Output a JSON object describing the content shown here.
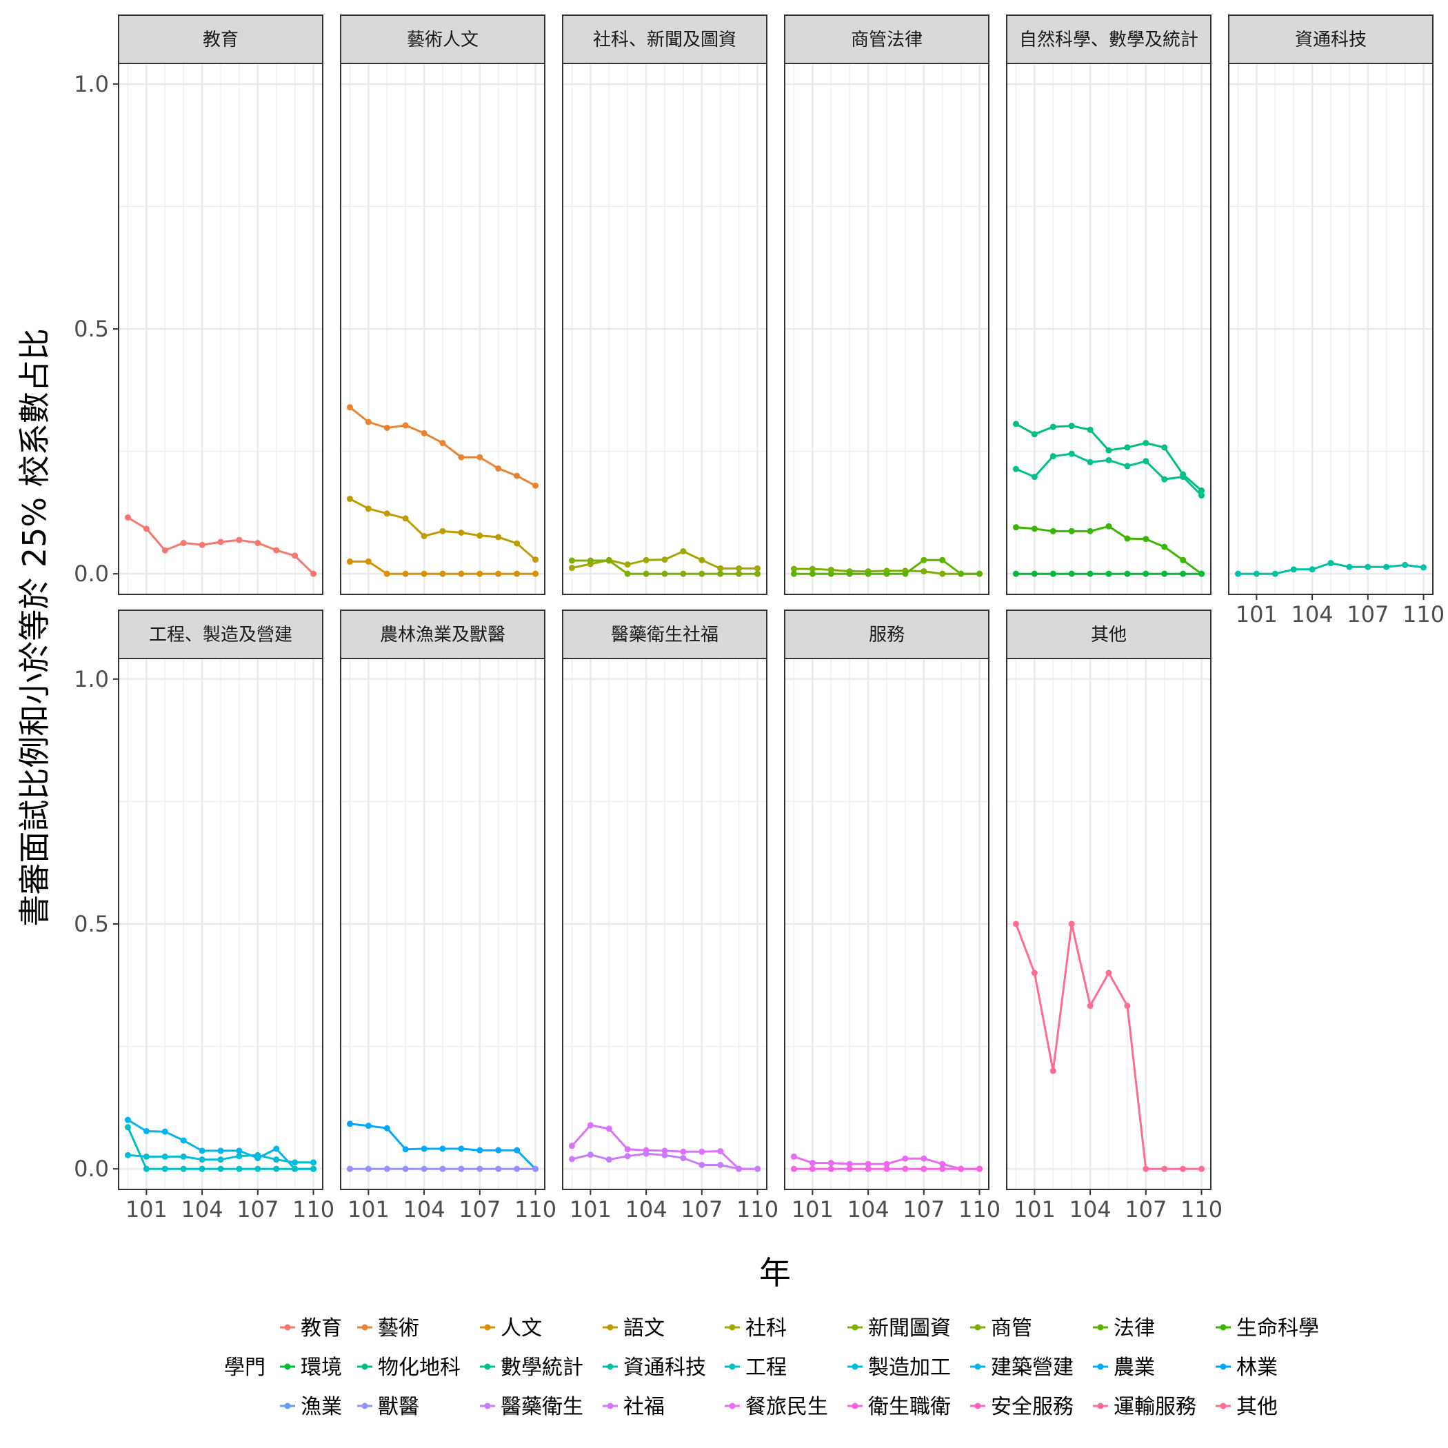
{
  "chart_data": {
    "type": "line",
    "xlabel": "年",
    "ylabel": "書審面試比例和小於等於 25% 校系數占比",
    "ylim": [
      0,
      1
    ],
    "xlim": [
      100,
      110
    ],
    "y_ticks": [
      {
        "value": 0,
        "label": "0.0"
      },
      {
        "value": 0.5,
        "label": "0.5"
      },
      {
        "value": 1,
        "label": "1.0"
      }
    ],
    "x_ticks": [
      {
        "value": 101,
        "label": "101"
      },
      {
        "value": 104,
        "label": "104"
      },
      {
        "value": 107,
        "label": "107"
      },
      {
        "value": 110,
        "label": "110"
      }
    ],
    "grid": true,
    "legend": {
      "title": "學門",
      "position": "bottom"
    },
    "colors": {
      "教育": "#F8766D",
      "藝術": "#EA8331",
      "人文": "#D89000",
      "語文": "#C09B00",
      "社科": "#A3A500",
      "新聞圖資": "#7CAE00",
      "商管": "#7CAE00",
      "法律": "#5BB300",
      "生命科學": "#39B600",
      "環境": "#00BA38",
      "物化地科": "#00BF7D",
      "數學統計": "#00C08B",
      "資通科技": "#00C1A3",
      "工程": "#00BFC4",
      "製造加工": "#00BBDA",
      "建築營建": "#00B4F0",
      "農業": "#00A9FF",
      "林業": "#00A5FF",
      "漁業": "#619CFF",
      "獸醫": "#9590FF",
      "醫藥衛生": "#C77CFF",
      "社福": "#DB72FB",
      "餐旅民生": "#E76BF3",
      "衛生職衛": "#F564E3",
      "安全服務": "#FF62BC",
      "運輸服務": "#FF6A98",
      "其他": "#FF6C91"
    },
    "legend_items": [
      "教育",
      "藝術",
      "人文",
      "語文",
      "社科",
      "新聞圖資",
      "商管",
      "法律",
      "生命科學",
      "環境",
      "物化地科",
      "數學統計",
      "資通科技",
      "工程",
      "製造加工",
      "建築營建",
      "農業",
      "林業",
      "漁業",
      "獸醫",
      "醫藥衛生",
      "社福",
      "餐旅民生",
      "衛生職衛",
      "安全服務",
      "運輸服務",
      "其他"
    ],
    "panels": [
      {
        "title": "教育",
        "x": [
          100,
          101,
          102,
          103,
          104,
          105,
          106,
          107,
          108,
          109,
          110
        ],
        "series": [
          {
            "name": "教育",
            "values": [
              0.115,
              0.092,
              0.048,
              0.063,
              0.059,
              0.065,
              0.069,
              0.063,
              0.048,
              0.037,
              0.0
            ]
          }
        ]
      },
      {
        "title": "藝術人文",
        "x": [
          100,
          101,
          102,
          103,
          104,
          105,
          106,
          107,
          108,
          109,
          110
        ],
        "series": [
          {
            "name": "藝術",
            "values": [
              0.34,
              0.31,
              0.298,
              0.303,
              0.287,
              0.267,
              0.238,
              0.238,
              0.215,
              0.2,
              0.18
            ]
          },
          {
            "name": "語文",
            "values": [
              0.153,
              0.133,
              0.123,
              0.113,
              0.077,
              0.087,
              0.084,
              0.078,
              0.075,
              0.062,
              0.029
            ]
          },
          {
            "name": "人文",
            "values": [
              0.025,
              0.025,
              0.0,
              0.0,
              0.0,
              0.0,
              0.0,
              0.0,
              0.0,
              0.0,
              0.0
            ]
          }
        ]
      },
      {
        "title": "社科、新聞及圖資",
        "x": [
          100,
          101,
          102,
          103,
          104,
          105,
          106,
          107,
          108,
          109,
          110
        ],
        "series": [
          {
            "name": "社科",
            "values": [
              0.012,
              0.02,
              0.028,
              0.019,
              0.028,
              0.029,
              0.046,
              0.028,
              0.011,
              0.011,
              0.011
            ]
          },
          {
            "name": "新聞圖資",
            "values": [
              0.027,
              0.027,
              0.027,
              0.0,
              0.0,
              0.0,
              0.0,
              0.0,
              0.0,
              0.0,
              0.0
            ]
          }
        ]
      },
      {
        "title": "商管法律",
        "x": [
          100,
          101,
          102,
          103,
          104,
          105,
          106,
          107,
          108,
          109,
          110
        ],
        "series": [
          {
            "name": "商管",
            "values": [
              0.01,
              0.01,
              0.008,
              0.005,
              0.005,
              0.006,
              0.006,
              0.005,
              0.0,
              0.0,
              0.0
            ]
          },
          {
            "name": "法律",
            "values": [
              0.0,
              0.0,
              0.0,
              0.0,
              0.0,
              0.0,
              0.0,
              0.028,
              0.028,
              0.0,
              0.0
            ]
          }
        ]
      },
      {
        "title": "自然科學、數學及統計",
        "x": [
          100,
          101,
          102,
          103,
          104,
          105,
          106,
          107,
          108,
          109,
          110
        ],
        "series": [
          {
            "name": "物化地科",
            "values": [
              0.306,
              0.285,
              0.3,
              0.302,
              0.294,
              0.252,
              0.258,
              0.267,
              0.258,
              0.203,
              0.17
            ]
          },
          {
            "name": "數學統計",
            "values": [
              0.214,
              0.198,
              0.24,
              0.245,
              0.228,
              0.232,
              0.22,
              0.23,
              0.193,
              0.198,
              0.16
            ]
          },
          {
            "name": "生命科學",
            "values": [
              0.095,
              0.092,
              0.087,
              0.087,
              0.087,
              0.097,
              0.072,
              0.071,
              0.055,
              0.028,
              0.0
            ]
          },
          {
            "name": "環境",
            "values": [
              0.0,
              0.0,
              0.0,
              0.0,
              0.0,
              0.0,
              0.0,
              0.0,
              0.0,
              0.0,
              0.0
            ]
          }
        ]
      },
      {
        "title": "資通科技",
        "x": [
          100,
          101,
          102,
          103,
          104,
          105,
          106,
          107,
          108,
          109,
          110
        ],
        "series": [
          {
            "name": "資通科技",
            "values": [
              0.0,
              0.0,
              0.0,
              0.009,
              0.009,
              0.022,
              0.014,
              0.014,
              0.014,
              0.018,
              0.013
            ]
          }
        ]
      },
      {
        "title": "工程、製造及營建",
        "x": [
          100,
          101,
          102,
          103,
          104,
          105,
          106,
          107,
          108,
          109,
          110
        ],
        "series": [
          {
            "name": "建築營建",
            "values": [
              0.1,
              0.077,
              0.076,
              0.058,
              0.037,
              0.037,
              0.037,
              0.022,
              0.041,
              0.0,
              0.0
            ]
          },
          {
            "name": "工程",
            "values": [
              0.085,
              0.0,
              0.0,
              0.0,
              0.0,
              0.0,
              0.0,
              0.0,
              0.0,
              0.0,
              0.0
            ]
          },
          {
            "name": "製造加工",
            "values": [
              0.028,
              0.025,
              0.025,
              0.025,
              0.019,
              0.019,
              0.026,
              0.028,
              0.019,
              0.013,
              0.013
            ]
          }
        ]
      },
      {
        "title": "農林漁業及獸醫",
        "x": [
          100,
          101,
          102,
          103,
          104,
          105,
          106,
          107,
          108,
          109,
          110
        ],
        "series": [
          {
            "name": "農業",
            "values": [
              0.092,
              0.088,
              0.083,
              0.04,
              0.041,
              0.041,
              0.041,
              0.038,
              0.038,
              0.038,
              0.0
            ]
          },
          {
            "name": "獸醫",
            "values": [
              0.0,
              0.0,
              0.0,
              0.0,
              0.0,
              0.0,
              0.0,
              0.0,
              0.0,
              0.0,
              0.0
            ]
          }
        ]
      },
      {
        "title": "醫藥衛生社福",
        "x": [
          100,
          101,
          102,
          103,
          104,
          105,
          106,
          107,
          108,
          109,
          110
        ],
        "series": [
          {
            "name": "社福",
            "values": [
              0.047,
              0.089,
              0.082,
              0.04,
              0.038,
              0.037,
              0.035,
              0.035,
              0.036,
              0.0,
              0.0
            ]
          },
          {
            "name": "醫藥衛生",
            "values": [
              0.02,
              0.029,
              0.019,
              0.026,
              0.031,
              0.028,
              0.022,
              0.008,
              0.008,
              0.0,
              0.0
            ]
          }
        ]
      },
      {
        "title": "服務",
        "x": [
          100,
          101,
          102,
          103,
          104,
          105,
          106,
          107,
          108,
          109,
          110
        ],
        "series": [
          {
            "name": "餐旅民生",
            "values": [
              0.025,
              0.012,
              0.012,
              0.01,
              0.01,
              0.01,
              0.021,
              0.021,
              0.01,
              0.0,
              0.0
            ]
          },
          {
            "name": "衛生職衛",
            "values": [
              0.0,
              0.0,
              0.0,
              0.0,
              0.0,
              0.0,
              0.0,
              0.0,
              0.0,
              0.0,
              0.0
            ]
          }
        ]
      },
      {
        "title": "其他",
        "x": [
          100,
          101,
          102,
          103,
          104,
          105,
          106,
          107,
          108,
          109,
          110
        ],
        "series": [
          {
            "name": "其他",
            "values": [
              0.5,
              0.4,
              0.2,
              0.5,
              0.333,
              0.4,
              0.333,
              0.0,
              0.0,
              0.0,
              0.0
            ]
          }
        ]
      }
    ]
  }
}
